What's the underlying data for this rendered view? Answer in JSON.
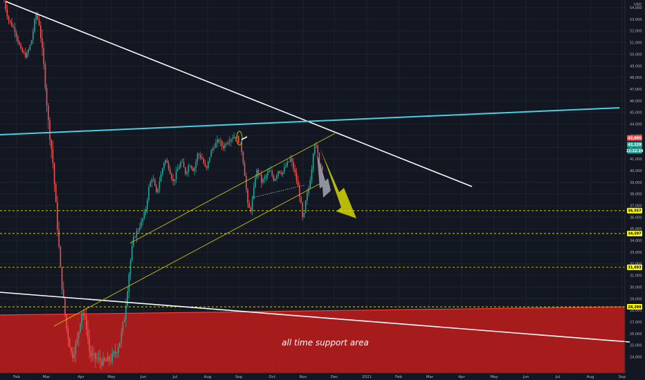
{
  "chart_data": {
    "type": "candlestick",
    "currency_label": "USD",
    "y_ticks": [
      "54,000",
      "53,000",
      "52,000",
      "51,000",
      "50,000",
      "49,000",
      "48,000",
      "47,000",
      "46,000",
      "45,000",
      "44,000",
      "43,000",
      "42,000",
      "41,000",
      "40,000",
      "39,000",
      "38,000",
      "37,000",
      "36,000",
      "35,000",
      "34,000",
      "33,000",
      "32,000",
      "31,000",
      "30,000",
      "29,000",
      "28,000",
      "27,000",
      "26,000",
      "25,000",
      "24,000"
    ],
    "ylim": [
      23800,
      54800
    ],
    "x_ticks": [
      "Feb",
      "Mar",
      "Apr",
      "May",
      "Jun",
      "Jul",
      "Aug",
      "Sep",
      "Oct",
      "Nov",
      "Dec",
      "2021",
      "Feb",
      "Mar",
      "Apr",
      "May",
      "Jun",
      "Jul",
      "Aug",
      "Sep"
    ],
    "price_badges": [
      {
        "label": "42,805",
        "value": 42805,
        "color": "#ef5350",
        "text_color": "#ffffff"
      },
      {
        "label": "42,229",
        "value": 42229,
        "color": "#26a69a",
        "text_color": "#ffffff"
      },
      {
        "label": "11:22:24",
        "value": 41700,
        "color": "#26a69a",
        "text_color": "#ffffff"
      },
      {
        "label": "36,557",
        "value": 36557,
        "color": "#ffff00",
        "text_color": "#000000"
      },
      {
        "label": "34,597",
        "value": 34597,
        "color": "#ffff00",
        "text_color": "#000000"
      },
      {
        "label": "31,693",
        "value": 31693,
        "color": "#ffff00",
        "text_color": "#000000"
      },
      {
        "label": "28,299",
        "value": 28299,
        "color": "#ffff00",
        "text_color": "#000000"
      }
    ],
    "horizontal_levels": [
      36557,
      34597,
      31693,
      28299
    ],
    "annotation": "all time support area",
    "colors": {
      "up": "#26a69a",
      "down": "#ef5350",
      "support": "#b71c1c",
      "cyan": "#4dd0e1",
      "yellow": "#f0f000",
      "grid": "#1f2330"
    }
  }
}
